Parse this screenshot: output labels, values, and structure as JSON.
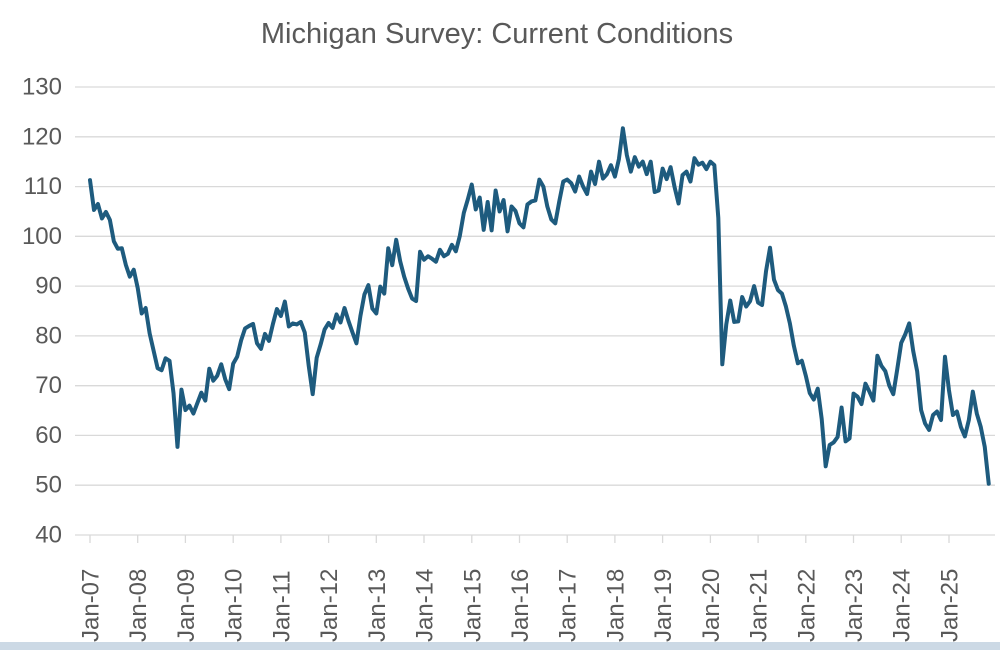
{
  "window": {
    "background_color": "#ffffff",
    "bottom_bar_color": "#ccd9e5"
  },
  "chart_data": {
    "type": "line",
    "title": "Michigan Survey: Current Conditions",
    "xlabel": "",
    "ylabel": "",
    "ylim": [
      40,
      130
    ],
    "y_ticks": [
      130,
      120,
      110,
      100,
      90,
      80,
      70,
      60,
      50,
      40
    ],
    "x_tick_labels": [
      "Jan-07",
      "Jan-08",
      "Jan-09",
      "Jan-10",
      "Jan-11",
      "Jan-12",
      "Jan-13",
      "Jan-14",
      "Jan-15",
      "Jan-16",
      "Jan-17",
      "Jan-18",
      "Jan-19",
      "Jan-20",
      "Jan-21",
      "Jan-22",
      "Jan-23",
      "Jan-24",
      "Jan-25"
    ],
    "months_per_tick": 12,
    "grid": "horizontal-only",
    "legend": "none",
    "colors": {
      "line": "#1e5b7e",
      "grid": "#d9d9d9",
      "tick": "#d9d9d9",
      "text": "#595959"
    },
    "series": [
      {
        "name": "Michigan Survey Current Conditions Index",
        "frequency": "monthly",
        "start": "Jan-07",
        "end": "Nov-25",
        "color": "#1e5b7e",
        "values": [
          111.3,
          105.3,
          106.5,
          103.6,
          104.9,
          103.3,
          99.0,
          97.5,
          97.6,
          94.3,
          91.9,
          93.3,
          89.6,
          84.5,
          85.6,
          80.5,
          77.0,
          73.5,
          73.1,
          75.5,
          75.0,
          68.5,
          57.7,
          69.2,
          65.1,
          66.0,
          64.4,
          66.5,
          68.6,
          67.0,
          73.4,
          71.0,
          72.0,
          74.3,
          71.3,
          69.3,
          74.4,
          75.8,
          79.1,
          81.5,
          82.0,
          82.4,
          78.5,
          77.4,
          80.4,
          79.0,
          82.4,
          85.4,
          84.0,
          86.9,
          81.9,
          82.5,
          82.3,
          82.8,
          80.7,
          74.0,
          68.3,
          75.6,
          78.3,
          81.3,
          82.6,
          81.6,
          84.3,
          82.7,
          85.6,
          83.0,
          80.7,
          78.5,
          84.0,
          88.3,
          90.2,
          85.5,
          84.5,
          89.9,
          88.5,
          97.6,
          94.2,
          99.3,
          95.0,
          91.9,
          89.5,
          87.5,
          87.0,
          96.9,
          95.3,
          96.0,
          95.5,
          94.9,
          97.3,
          96.0,
          96.5,
          98.3,
          97.0,
          100.1,
          104.7,
          107.4,
          110.4,
          105.4,
          107.8,
          101.3,
          106.9,
          101.2,
          109.2,
          105.0,
          107.3,
          101.0,
          106.0,
          105.1,
          102.6,
          101.8,
          106.4,
          107.0,
          107.2,
          111.4,
          110.0,
          106.0,
          103.4,
          102.6,
          107.0,
          111.0,
          111.4,
          110.7,
          109.0,
          112.0,
          110.0,
          108.5,
          113.0,
          110.5,
          115.0,
          111.6,
          112.5,
          114.3,
          112.0,
          115.5,
          121.7,
          116.3,
          113.0,
          115.9,
          114.0,
          115.0,
          112.5,
          115.0,
          108.9,
          109.2,
          113.6,
          111.5,
          113.9,
          109.9,
          106.6,
          112.3,
          113.0,
          111.0,
          115.7,
          114.4,
          114.8,
          113.5,
          115.0,
          114.3,
          103.7,
          74.3,
          82.3,
          87.1,
          82.8,
          82.9,
          87.8,
          85.9,
          87.0,
          90.0,
          86.7,
          86.2,
          93.0,
          97.7,
          91.3,
          89.2,
          88.5,
          85.9,
          82.5,
          78.0,
          74.5,
          75.0,
          72.0,
          68.5,
          67.2,
          69.4,
          63.3,
          53.8,
          58.1,
          58.6,
          59.7,
          65.6,
          58.8,
          59.4,
          68.4,
          67.8,
          66.3,
          70.4,
          68.8,
          67.0,
          76.0,
          74.0,
          72.9,
          70.0,
          68.3,
          73.3,
          78.6,
          80.3,
          82.5,
          77.0,
          72.9,
          65.1,
          62.4,
          61.1,
          64.1,
          64.8,
          63.1,
          75.8,
          69.1,
          64.1,
          64.8,
          61.7,
          59.8,
          63.1,
          68.8,
          64.4,
          61.7,
          57.7,
          50.3
        ]
      }
    ]
  }
}
